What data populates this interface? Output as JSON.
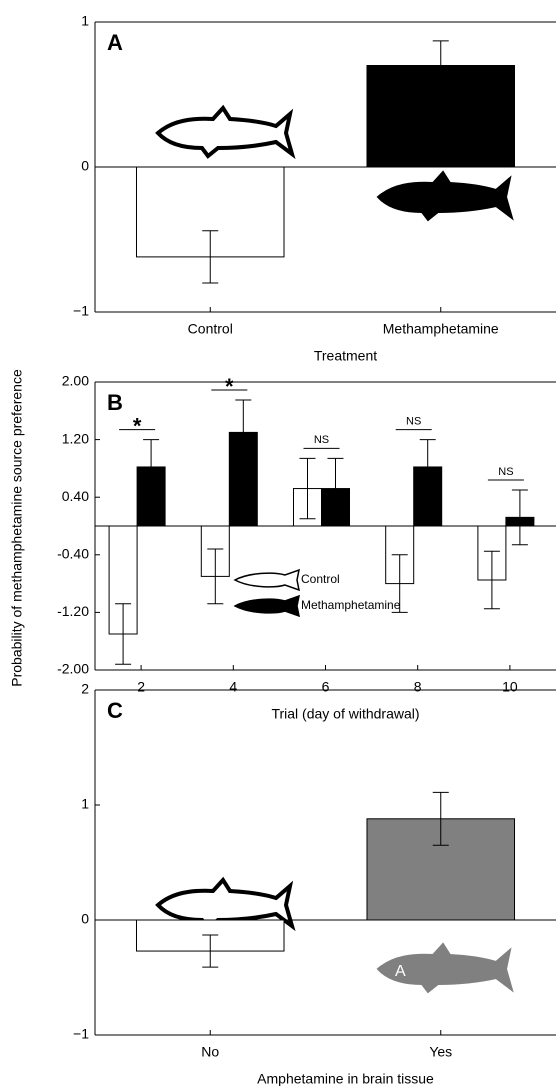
{
  "y_label": "Probability of methamphetamine source preference",
  "chart_data": [
    {
      "type": "bar",
      "panel_label": "A",
      "x_label": "Treatment",
      "categories": [
        "Control",
        "Methamphetamine"
      ],
      "values": [
        -0.62,
        0.7
      ],
      "errors": [
        0.18,
        0.17
      ],
      "colors": [
        "#ffffff",
        "#000000"
      ],
      "ylim": [
        -1,
        1
      ],
      "yticks": [
        {
          "value": -1,
          "label": "−1"
        },
        0,
        1
      ]
    },
    {
      "type": "grouped-bar",
      "panel_label": "B",
      "x_label": "Trial (day of withdrawal)",
      "categories": [
        "2",
        "4",
        "6",
        "8",
        "10"
      ],
      "series": [
        {
          "name": "Control",
          "color": "#ffffff",
          "values": [
            -1.5,
            -0.7,
            0.52,
            -0.8,
            -0.75
          ],
          "errors": [
            0.42,
            0.38,
            0.42,
            0.4,
            0.4
          ]
        },
        {
          "name": "Methamphetamine",
          "color": "#000000",
          "values": [
            0.82,
            1.3,
            0.52,
            0.82,
            0.12
          ],
          "errors": [
            0.38,
            0.45,
            0.42,
            0.38,
            0.38
          ]
        }
      ],
      "annotations": [
        "*",
        "*",
        "NS",
        "NS",
        "NS"
      ],
      "legend": "lower center",
      "ylim": [
        -2,
        2
      ],
      "yticks": [
        {
          "value": -2,
          "label": "-2.00"
        },
        {
          "value": -1.2,
          "label": "-1.20"
        },
        {
          "value": -0.4,
          "label": "-0.40"
        },
        {
          "value": 0.4,
          "label": "0.40"
        },
        {
          "value": 1.2,
          "label": "1.20"
        },
        {
          "value": 2,
          "label": "2.00"
        }
      ]
    },
    {
      "type": "bar",
      "panel_label": "C",
      "x_label": "Amphetamine in brain tissue",
      "categories": [
        "No",
        "Yes"
      ],
      "values": [
        -0.27,
        0.88
      ],
      "errors": [
        0.14,
        0.23
      ],
      "colors": [
        "#ffffff",
        "#808080"
      ],
      "fish_label": "A",
      "ylim": [
        -1,
        2
      ],
      "yticks": [
        {
          "value": -1,
          "label": "−1"
        },
        0,
        1,
        2
      ]
    }
  ]
}
